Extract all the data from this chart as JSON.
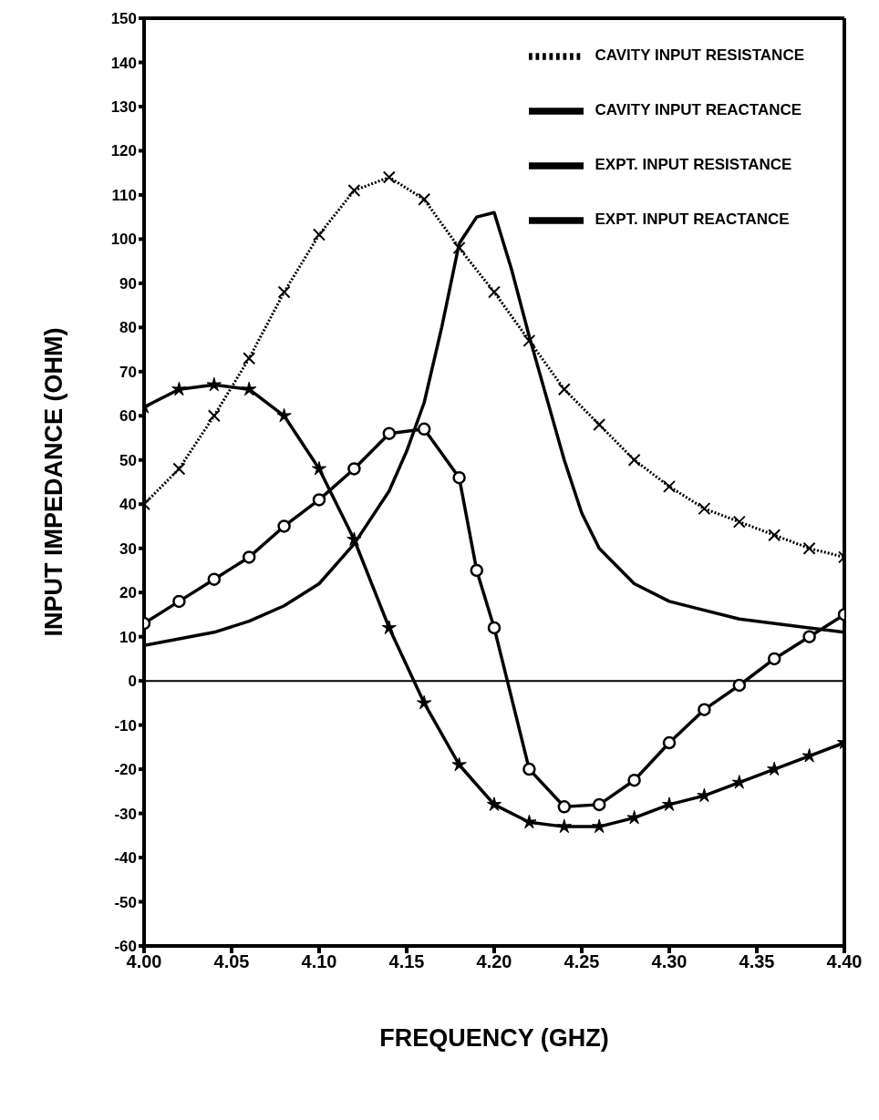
{
  "chart_data": {
    "type": "line",
    "xlabel": "FREQUENCY (GHZ)",
    "ylabel": "INPUT IMPEDANCE (OHM)",
    "xlim": [
      4.0,
      4.4
    ],
    "xticks": [
      {
        "value": 4.0,
        "label": "4.00"
      },
      {
        "value": 4.05,
        "label": "4.05"
      },
      {
        "value": 4.1,
        "label": "4.10"
      },
      {
        "value": 4.15,
        "label": "4.15"
      },
      {
        "value": 4.2,
        "label": "4.20"
      },
      {
        "value": 4.25,
        "label": "4.25"
      },
      {
        "value": 4.3,
        "label": "4.30"
      },
      {
        "value": 4.35,
        "label": "4.35"
      },
      {
        "value": 4.4,
        "label": "4.40"
      }
    ],
    "ylim": [
      -60,
      150
    ],
    "yticks": [
      -60,
      -50,
      -40,
      -30,
      -20,
      -10,
      0,
      10,
      20,
      30,
      40,
      50,
      60,
      70,
      80,
      90,
      100,
      110,
      120,
      130,
      140,
      150
    ],
    "grid": false,
    "legend": "top right",
    "ref_lines": [
      {
        "axis": "y",
        "value": 0,
        "color": "#000000",
        "line_style": "solid"
      }
    ],
    "series": [
      {
        "name": "CAVITY INPUT RESISTANCE",
        "color": "#000000",
        "marker": "cross",
        "line_style": "dotted",
        "x": [
          4.0,
          4.02,
          4.04,
          4.06,
          4.08,
          4.1,
          4.12,
          4.14,
          4.16,
          4.18,
          4.2,
          4.22,
          4.24,
          4.26,
          4.28,
          4.3,
          4.32,
          4.34,
          4.36,
          4.38,
          4.4
        ],
        "values": [
          40,
          48,
          60,
          73,
          88,
          101,
          111,
          114,
          109,
          98,
          88,
          77,
          66,
          58,
          50,
          44,
          39,
          36,
          33,
          30,
          28
        ]
      },
      {
        "name": "CAVITY INPUT REACTANCE",
        "color": "#000000",
        "marker": "star",
        "line_style": "solid",
        "x": [
          4.0,
          4.02,
          4.04,
          4.06,
          4.08,
          4.1,
          4.12,
          4.14,
          4.16,
          4.18,
          4.2,
          4.22,
          4.24,
          4.26,
          4.28,
          4.3,
          4.32,
          4.34,
          4.36,
          4.38,
          4.4
        ],
        "values": [
          62,
          66,
          67,
          66,
          60,
          48,
          32,
          12,
          -5,
          -19,
          -28,
          -32,
          -33,
          -33,
          -31,
          -28,
          -26,
          -23,
          -20,
          -17,
          -14
        ]
      },
      {
        "name": "EXPT. INPUT RESISTANCE",
        "color": "#000000",
        "marker": "none",
        "line_style": "solid",
        "x": [
          4.0,
          4.02,
          4.04,
          4.06,
          4.08,
          4.1,
          4.12,
          4.14,
          4.15,
          4.16,
          4.17,
          4.18,
          4.19,
          4.2,
          4.21,
          4.22,
          4.23,
          4.24,
          4.25,
          4.26,
          4.28,
          4.3,
          4.34,
          4.38,
          4.4
        ],
        "values": [
          8,
          9.5,
          11,
          13.5,
          17,
          22,
          31,
          43,
          52,
          63,
          80,
          99,
          105,
          106,
          93,
          78,
          64,
          50,
          38,
          30,
          22,
          18,
          14,
          12,
          11
        ]
      },
      {
        "name": "EXPT. INPUT REACTANCE",
        "color": "#000000",
        "marker": "circle",
        "line_style": "solid",
        "x": [
          4.0,
          4.02,
          4.04,
          4.06,
          4.08,
          4.1,
          4.12,
          4.14,
          4.16,
          4.18,
          4.19,
          4.2,
          4.22,
          4.24,
          4.26,
          4.28,
          4.3,
          4.32,
          4.34,
          4.36,
          4.38,
          4.4
        ],
        "values": [
          13,
          18,
          23,
          28,
          35,
          41,
          48,
          56,
          57,
          46,
          25,
          12,
          -20,
          -28.5,
          -28,
          -22.5,
          -14,
          -6.5,
          -1,
          5,
          10,
          15
        ]
      }
    ]
  }
}
